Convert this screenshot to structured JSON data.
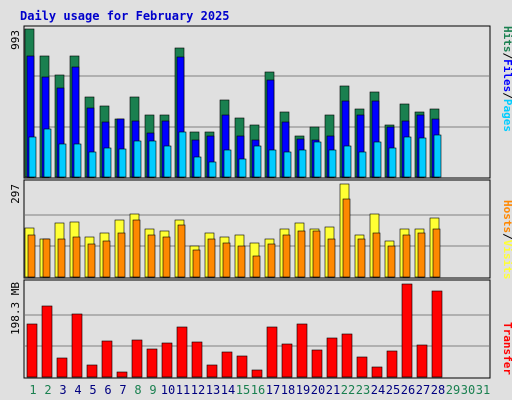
{
  "chart_data": {
    "type": "bar",
    "title": "Daily usage for February 2025",
    "colors": {
      "background": "#e0e0e0",
      "title": "#0000cc",
      "hits": "#1a8050",
      "files": "#0000ff",
      "pages": "#00ccff",
      "visits": "#ffff33",
      "hosts": "#ff8800",
      "transfer": "#ff0000",
      "weekend_day": "#1a8050",
      "weekday_day": "#000080",
      "future_day": "#1a8050",
      "grid": "#808080",
      "outline": "#000000"
    },
    "categories": [
      "1",
      "2",
      "3",
      "4",
      "5",
      "6",
      "7",
      "8",
      "9",
      "10",
      "11",
      "12",
      "13",
      "14",
      "15",
      "16",
      "17",
      "18",
      "19",
      "20",
      "21",
      "22",
      "23",
      "24",
      "25",
      "26",
      "27",
      "28",
      "29",
      "30",
      "31"
    ],
    "weekend_days": [
      1,
      2,
      8,
      9,
      15,
      16,
      22,
      23
    ],
    "future_days": [
      29,
      30,
      31
    ],
    "panels": [
      {
        "id": "top",
        "ytick": "993",
        "ymax": 993,
        "side_label_parts": [
          {
            "text": "Hits",
            "color": "#1a8050"
          },
          {
            "text": "/",
            "color": "#000000"
          },
          {
            "text": "Files",
            "color": "#0000ff"
          },
          {
            "text": "/",
            "color": "#000000"
          },
          {
            "text": "Pages",
            "color": "#00ccff"
          }
        ],
        "series": [
          {
            "name": "Hits",
            "color": "#1a8050",
            "values": [
              993,
              811,
              683,
              811,
              534,
              474,
              392,
              534,
              413,
              413,
              865,
              303,
              303,
              514,
              399,
              348,
              704,
              433,
              278,
              338,
              413,
              608,
              453,
              568,
              348,
              493,
              433,
              459
            ]
          },
          {
            "name": "Files",
            "color": "#0000ff",
            "values": [
              811,
              669,
              596,
              737,
              460,
              372,
              392,
              379,
              298,
              379,
              804,
              251,
              277,
              419,
              278,
              251,
              649,
              372,
              257,
              251,
              278,
              507,
              419,
              507,
              338,
              379,
              413,
              392
            ]
          },
          {
            "name": "Pages",
            "color": "#00ccff",
            "values": [
              271,
              324,
              223,
              223,
              169,
              196,
              189,
              243,
              243,
              210,
              304,
              136,
              102,
              183,
              122,
              210,
              183,
              169,
              183,
              236,
              183,
              210,
              169,
              236,
              196,
              271,
              264,
              284
            ]
          }
        ]
      },
      {
        "id": "middle",
        "ytick": "297",
        "ymax": 297,
        "side_label_parts": [
          {
            "text": "Hosts",
            "color": "#ff8800"
          },
          {
            "text": "/",
            "color": "#000000"
          },
          {
            "text": "Visits",
            "color": "#ffff33"
          }
        ],
        "series": [
          {
            "name": "Visits",
            "color": "#ffff33",
            "values": [
              158,
              122,
              171,
              177,
              128,
              140,
              183,
              201,
              153,
              147,
              183,
              98,
              140,
              128,
              134,
              110,
              122,
              153,
              171,
              153,
              159,
              297,
              134,
              201,
              116,
              153,
              153,
              189
            ]
          },
          {
            "name": "Hosts",
            "color": "#ff8800",
            "values": [
              134,
              122,
              122,
              128,
              104,
              116,
              140,
              183,
              134,
              128,
              165,
              86,
              122,
              110,
              98,
              68,
              104,
              134,
              147,
              147,
              122,
              250,
              122,
              140,
              98,
              134,
              140,
              153
            ]
          }
        ]
      },
      {
        "id": "bottom",
        "ytick": "198.3 MB",
        "ymax": 396.6,
        "side_label_parts": [
          {
            "text": "Transfer",
            "color": "#ff0000"
          }
        ],
        "series": [
          {
            "name": "Transfer",
            "color": "#ff0000",
            "values": [
              224,
              303,
              79,
              268,
              53,
              154,
              22,
              159,
              119,
              145,
              215,
              150,
              53,
              106,
              88,
              31,
              215,
              140,
              224,
              114,
              167,
              185,
              84,
              44,
              110,
              396,
              136,
              365
            ]
          }
        ]
      }
    ]
  }
}
